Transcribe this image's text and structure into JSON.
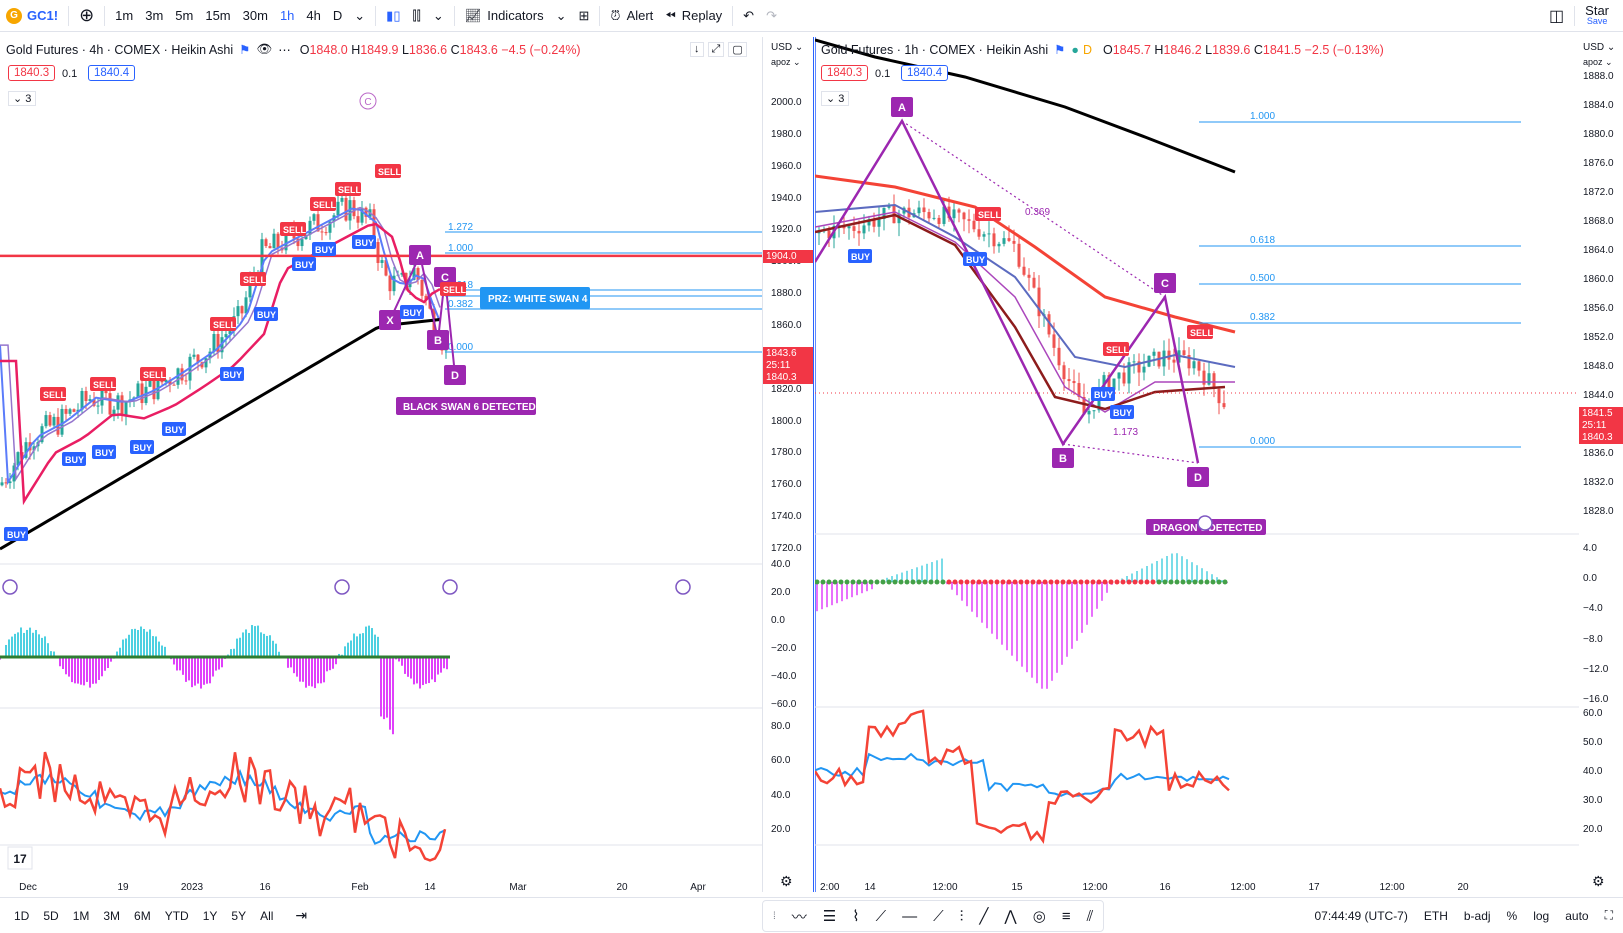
{
  "topbar": {
    "symbol": "GC1!",
    "intervals": [
      "1m",
      "3m",
      "5m",
      "15m",
      "30m",
      "1h",
      "4h",
      "D"
    ],
    "active_interval": "1h",
    "indicators_label": "Indicators",
    "alert_label": "Alert",
    "replay_label": "Replay",
    "star_label": "Star",
    "save_label": "Save"
  },
  "left_chart": {
    "title": "Gold Futures · 4h · COMEX · Heikin Ashi",
    "ohlc": {
      "o": "1848.0",
      "h": "1849.9",
      "l": "1836.6",
      "c": "1843.6",
      "chg": "−4.5 (−0.24%)"
    },
    "bid": "1840.3",
    "spread": "0.1",
    "ask": "1840.4",
    "collapse": "3",
    "axis_currency": "USD",
    "axis_mode": "apoz",
    "price_ticks": [
      "2000.0",
      "1980.0",
      "1960.0",
      "1940.0",
      "1920.0",
      "1900.0",
      "1880.0",
      "1860.0",
      "1840.0",
      "1820.0",
      "1800.0",
      "1780.0",
      "1760.0",
      "1740.0",
      "1720.0"
    ],
    "price_min": 1720,
    "price_max": 2000,
    "red_level_label": "1904.0",
    "last_price_label": "1843.6",
    "countdown": "25:11",
    "bid_axis_label": "1840.3",
    "fib_labels": [
      "1.272",
      "1.000",
      "0.618",
      "0.5",
      "0.382",
      "0.000"
    ],
    "prz_label": "PRZ: WHITE SWAN 4",
    "black_swan_label": "BLACK SWAN 6 DETECTED",
    "pattern_points": [
      "X",
      "A",
      "B",
      "C",
      "D"
    ],
    "date_ticks": [
      "Dec",
      "19",
      "2023",
      "16",
      "Feb",
      "14",
      "Mar",
      "20",
      "Apr"
    ],
    "osc1_ticks": [
      "40.0",
      "20.0",
      "0.0",
      "−20.0",
      "−40.0",
      "−60.0"
    ],
    "osc2_ticks": [
      "80.0",
      "60.0",
      "40.0",
      "20.0"
    ]
  },
  "right_chart": {
    "title": "Gold Futures · 1h · COMEX · Heikin Ashi",
    "ohlc": {
      "o": "1845.7",
      "h": "1846.2",
      "l": "1839.6",
      "c": "1841.5",
      "chg": "−2.5 (−0.13%)"
    },
    "bid": "1840.3",
    "spread": "0.1",
    "ask": "1840.4",
    "collapse": "3",
    "axis_currency": "USD",
    "axis_mode": "apoz",
    "price_ticks": [
      "1888.0",
      "1884.0",
      "1880.0",
      "1876.0",
      "1872.0",
      "1868.0",
      "1864.0",
      "1860.0",
      "1856.0",
      "1852.0",
      "1848.0",
      "1844.0",
      "1840.0",
      "1836.0",
      "1832.0",
      "1828.0"
    ],
    "price_min": 1824,
    "price_max": 1888,
    "last_price_label": "1841.5",
    "countdown": "25:11",
    "bid_axis_label": "1840.3",
    "fib_labels": [
      "1.000",
      "0.618",
      "0.500",
      "0.382",
      "0.000"
    ],
    "ratio_labels": [
      "0.369",
      "1.173"
    ],
    "dragon_label": "DRAGON 6 DETECTED",
    "pattern_points": [
      "A",
      "B",
      "C",
      "D"
    ],
    "date_ticks": [
      "2:00",
      "14",
      "12:00",
      "15",
      "12:00",
      "16",
      "12:00",
      "17",
      "12:00",
      "20"
    ],
    "osc1_ticks": [
      "4.0",
      "0.0",
      "−4.0",
      "−8.0",
      "−12.0",
      "−16.0"
    ],
    "osc2_ticks": [
      "60.0",
      "50.0",
      "40.0",
      "30.0",
      "20.0"
    ]
  },
  "bottombar": {
    "ranges": [
      "1D",
      "5D",
      "1M",
      "3M",
      "6M",
      "YTD",
      "1Y",
      "5Y",
      "All"
    ],
    "time": "07:44:49 (UTC-7)",
    "session": "ETH",
    "adj": "b-adj",
    "percent": "%",
    "log": "log",
    "auto": "auto"
  },
  "colors": {
    "buy": "#2962ff",
    "sell": "#f23645",
    "pattern": "#9c27b0",
    "fib": "#2196f3",
    "up": "#26a69a",
    "down": "#ef5350"
  }
}
